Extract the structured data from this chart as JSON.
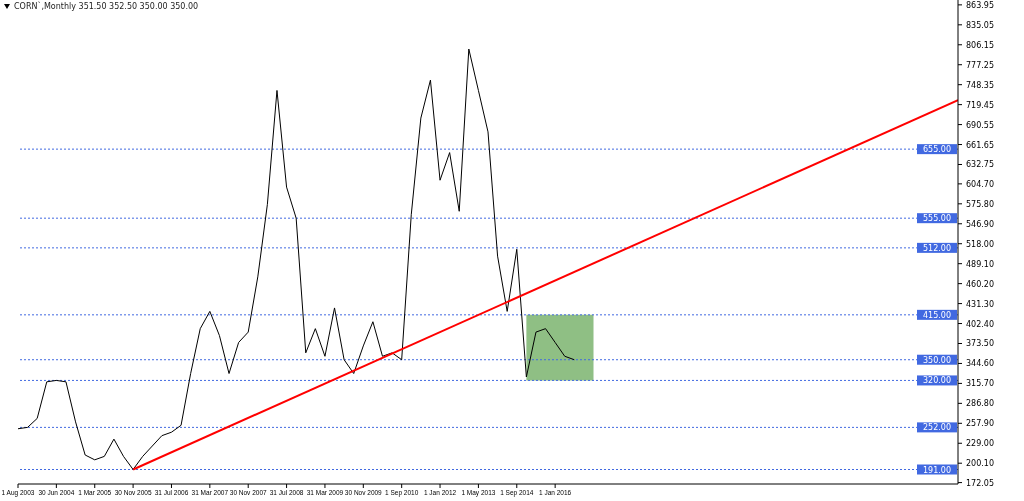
{
  "chart_data": {
    "type": "line",
    "title": "CORN`,Monthly  351.50 352.50 350.00 350.00",
    "categories": [
      "1 Aug 2003",
      null,
      null,
      null,
      "30 Jun 2004",
      null,
      null,
      null,
      "1 Mar 2005",
      null,
      null,
      null,
      "30 Nov 2005",
      null,
      null,
      null,
      "31 Jul 2006",
      null,
      null,
      null,
      "31 Mar 2007",
      null,
      null,
      null,
      "30 Nov 2007",
      null,
      null,
      null,
      "31 Jul 2008",
      null,
      null,
      null,
      "31 Mar 2009",
      null,
      null,
      null,
      "30 Nov 2009",
      null,
      null,
      null,
      "1 Sep 2010",
      null,
      null,
      null,
      "1 Jan 2012",
      null,
      null,
      null,
      "1 May 2013",
      null,
      null,
      null,
      "1 Sep 2014",
      null,
      null,
      null,
      "1 Jan 2016",
      null,
      null,
      null,
      null,
      null,
      null,
      null,
      null,
      null,
      null,
      null,
      null,
      null,
      null,
      null,
      null,
      null,
      null,
      null,
      null,
      null,
      null,
      null,
      null,
      null,
      null,
      null,
      null,
      null,
      null,
      null,
      null,
      null,
      null,
      null,
      null,
      null,
      null,
      null,
      null,
      null,
      null
    ],
    "series": [
      {
        "color": "#000000",
        "values": [
          250,
          252,
          265,
          318,
          320,
          318,
          260,
          212,
          205,
          210,
          235,
          210,
          191,
          210,
          225,
          240,
          245,
          255,
          330,
          395,
          420,
          385,
          330,
          375,
          390,
          470,
          575,
          740,
          600,
          555,
          360,
          395,
          355,
          425,
          350,
          330,
          370,
          405,
          355,
          360,
          350,
          560,
          700,
          755,
          610,
          650,
          565,
          800,
          740,
          680,
          500,
          420,
          510,
          325,
          390,
          395,
          375,
          355,
          350,
          null,
          null,
          null,
          null,
          null,
          null,
          null,
          null,
          null,
          null,
          null,
          null,
          null,
          null,
          null,
          null,
          null,
          null,
          null,
          null,
          null,
          null,
          null,
          null,
          null,
          null,
          null,
          null,
          null,
          null,
          null,
          null,
          null,
          null,
          null,
          null,
          null,
          null,
          null,
          null
        ]
      },
      {
        "color": "#ff0000",
        "values": [
          null,
          null,
          null,
          null,
          null,
          null,
          null,
          null,
          null,
          null,
          null,
          null,
          191,
          null,
          null,
          null,
          null,
          null,
          null,
          null,
          null,
          null,
          null,
          null,
          null,
          null,
          null,
          null,
          null,
          null,
          null,
          null,
          null,
          null,
          null,
          null,
          null,
          null,
          null,
          null,
          null,
          null,
          null,
          null,
          null,
          null,
          null,
          null,
          null,
          null,
          null,
          null,
          null,
          null,
          null,
          null,
          null,
          null,
          null,
          null,
          null,
          null,
          null,
          null,
          null,
          null,
          null,
          null,
          null,
          null,
          null,
          null,
          null,
          null,
          null,
          null,
          null,
          null,
          null,
          null,
          null,
          null,
          null,
          null,
          null,
          null,
          null,
          null,
          null,
          null,
          null,
          null,
          null,
          null,
          null,
          null,
          null,
          null,
          726
        ]
      }
    ],
    "ylim": [
      170,
      871
    ],
    "yticks": [
      {
        "value": 172.05,
        "label": "172.05"
      },
      {
        "value": 200.1,
        "label": "200.10"
      },
      {
        "value": 229,
        "label": "229.00"
      },
      {
        "value": 257.9,
        "label": "257.90"
      },
      {
        "value": 286.8,
        "label": "286.80"
      },
      {
        "value": 315.7,
        "label": "315.70"
      },
      {
        "value": 344.6,
        "label": "344.60"
      },
      {
        "value": 373.5,
        "label": "373.50"
      },
      {
        "value": 402.4,
        "label": "402.40"
      },
      {
        "value": 431.3,
        "label": "431.30"
      },
      {
        "value": 460.2,
        "label": "460.20"
      },
      {
        "value": 489.1,
        "label": "489.10"
      },
      {
        "value": 518,
        "label": "518.00"
      },
      {
        "value": 546.9,
        "label": "546.90"
      },
      {
        "value": 575.8,
        "label": "575.80"
      },
      {
        "value": 604.7,
        "label": "604.70"
      },
      {
        "value": 632.75,
        "label": "632.75"
      },
      {
        "value": 661.65,
        "label": "661.65"
      },
      {
        "value": 690.55,
        "label": "690.55"
      },
      {
        "value": 719.45,
        "label": "719.45"
      },
      {
        "value": 748.35,
        "label": "748.35"
      },
      {
        "value": 777.25,
        "label": "777.25"
      },
      {
        "value": 806.15,
        "label": "806.15"
      },
      {
        "value": 835.05,
        "label": "835.05"
      },
      {
        "value": 863.95,
        "label": "863.95"
      }
    ],
    "ref_lines": [
      {
        "axis": "y",
        "value": 191,
        "label": "191.00",
        "color": "#4169e1",
        "line_style": "dotted"
      },
      {
        "axis": "y",
        "value": 252,
        "label": "252.00",
        "color": "#4169e1",
        "line_style": "dotted"
      },
      {
        "axis": "y",
        "value": 320,
        "label": "320.00",
        "color": "#4169e1",
        "line_style": "dotted"
      },
      {
        "axis": "y",
        "value": 350,
        "label": "350.00",
        "color": "#4169e1",
        "line_style": "dotted"
      },
      {
        "axis": "y",
        "value": 415,
        "label": "415.00",
        "color": "#4169e1",
        "line_style": "dotted"
      },
      {
        "axis": "y",
        "value": 512,
        "label": "512.00",
        "color": "#4169e1",
        "line_style": "dotted"
      },
      {
        "axis": "y",
        "value": 555,
        "label": "555.00",
        "color": "#4169e1",
        "line_style": "dotted"
      },
      {
        "axis": "y",
        "value": 655,
        "label": "655.00",
        "color": "#4169e1",
        "line_style": "dotted"
      }
    ],
    "bands": [
      {
        "axis": "y",
        "from": 320,
        "to": 415,
        "color": "#8fbf84"
      }
    ],
    "grid": false,
    "legend": false,
    "marker": "none",
    "line_style": "solid"
  }
}
